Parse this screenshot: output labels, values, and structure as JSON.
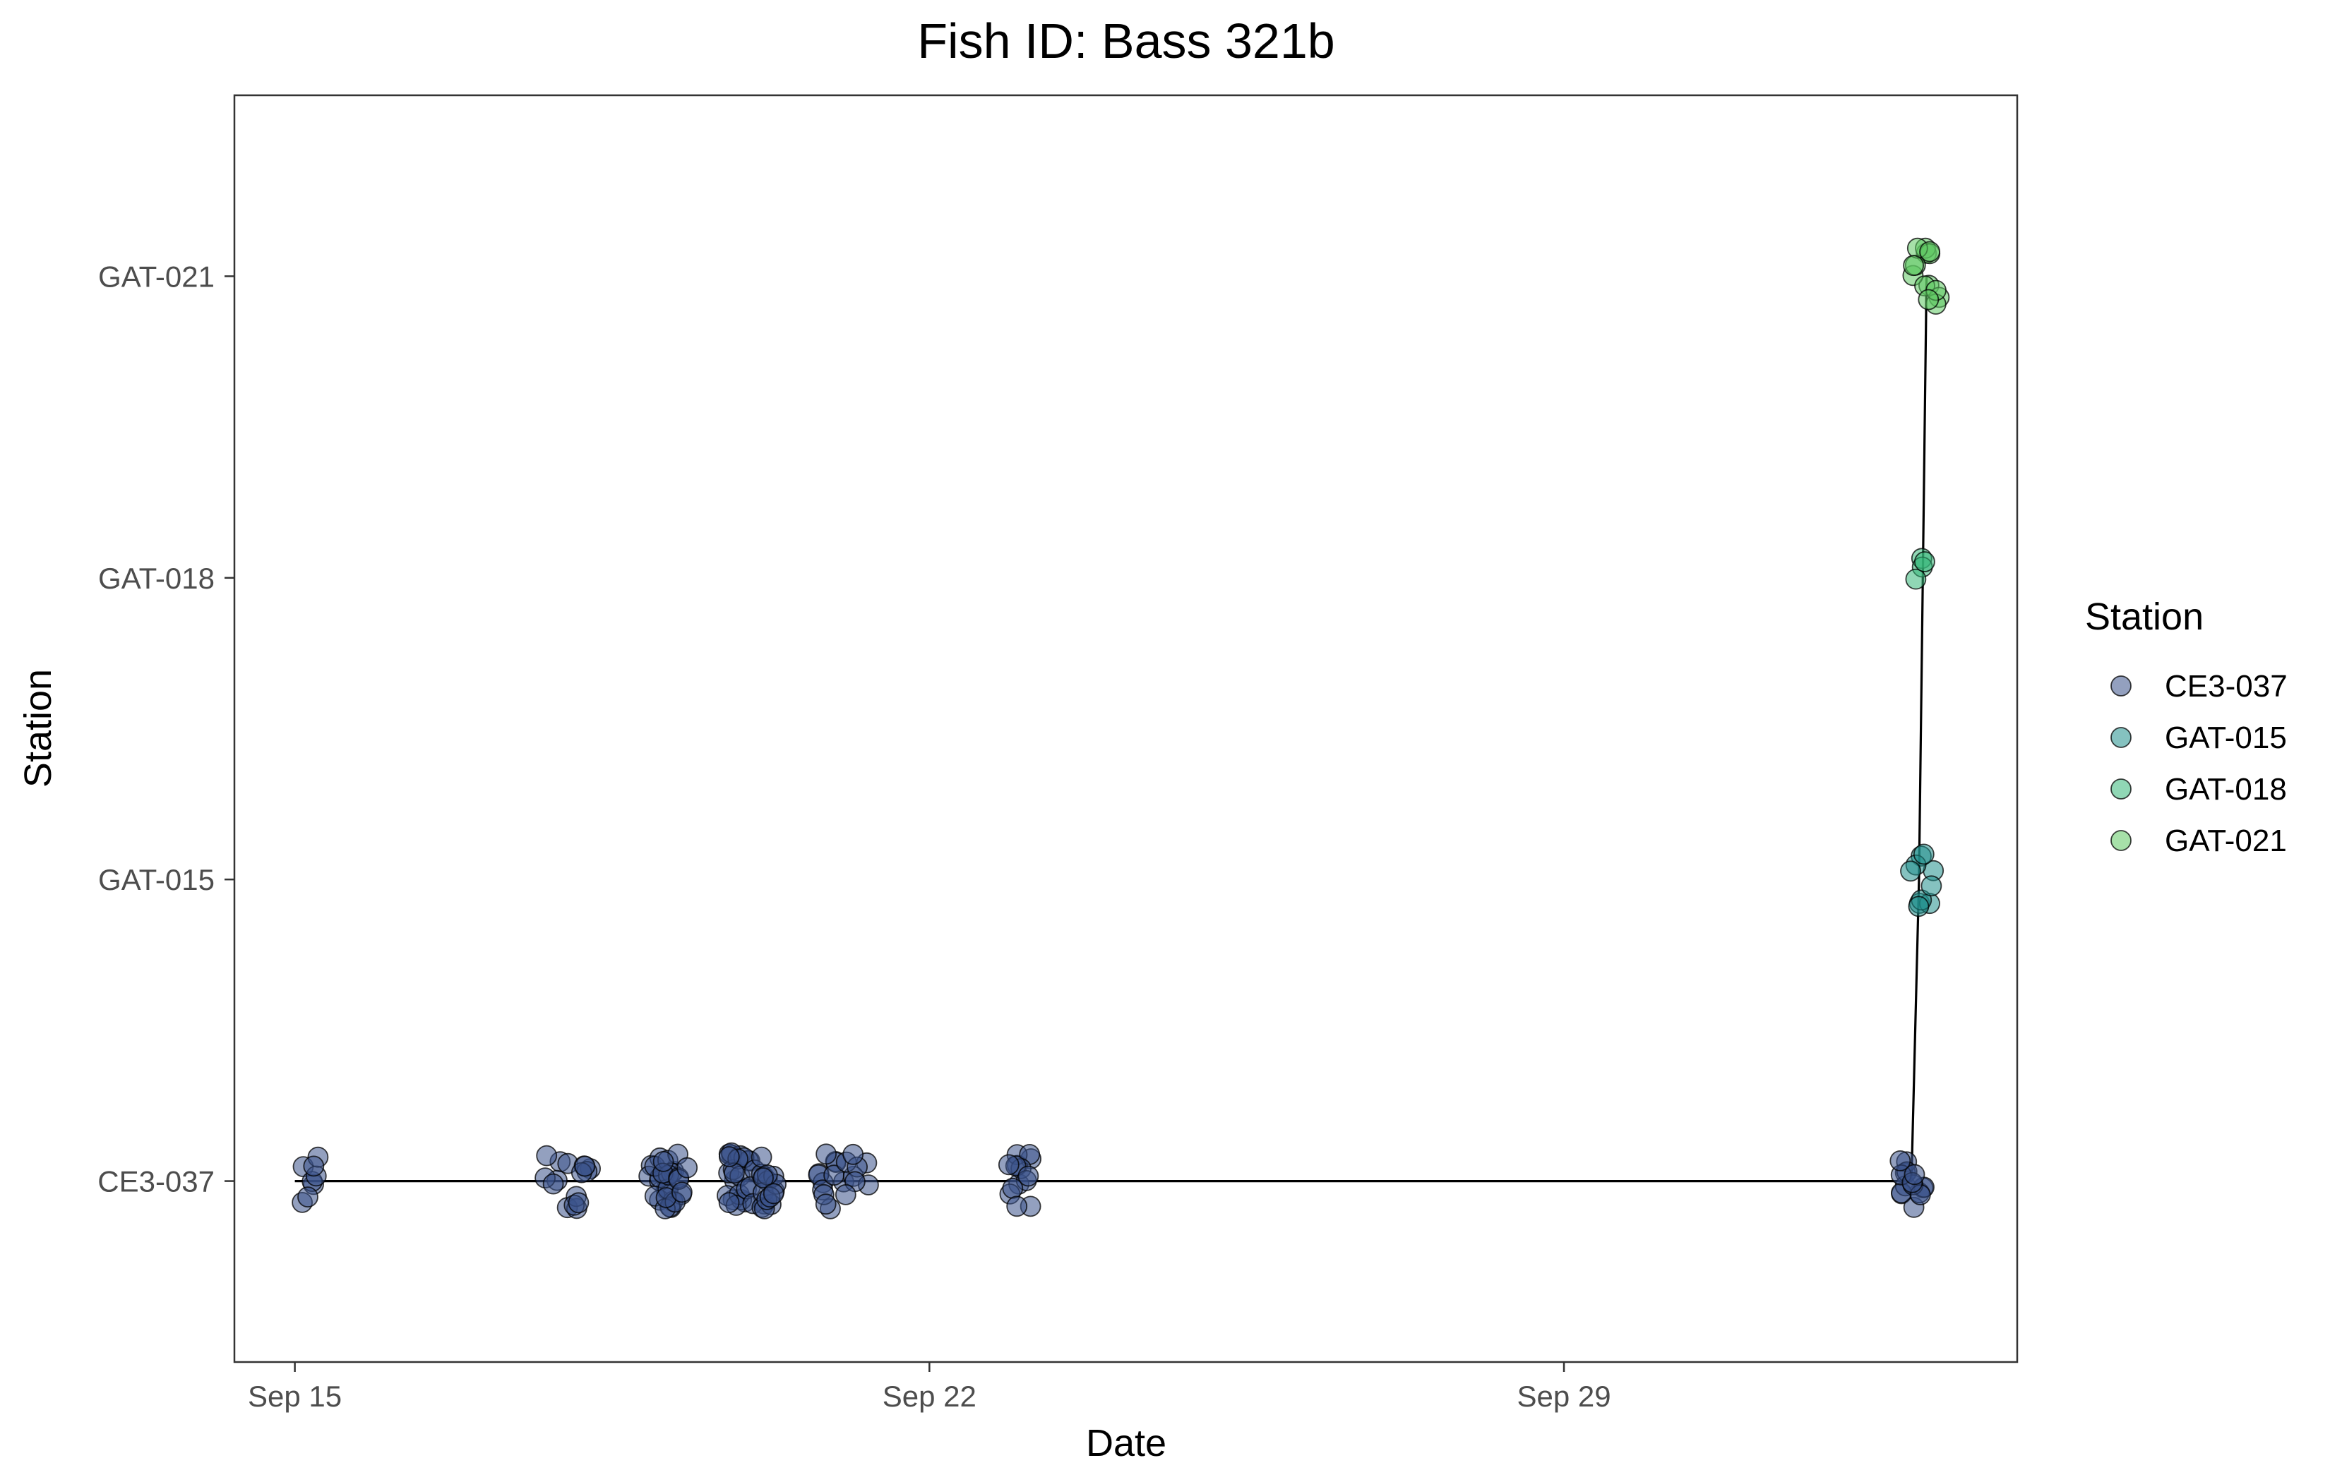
{
  "chart_data": {
    "type": "scatter",
    "title": "Fish ID: Bass 321b",
    "xlabel": "Date",
    "ylabel": "Station",
    "x_range": [
      "2023-09-14T08:00",
      "2023-10-04T00:00"
    ],
    "x_ticks": [
      {
        "date": "2023-09-15T00:00",
        "label": "Sep 15"
      },
      {
        "date": "2023-09-22T00:00",
        "label": "Sep 22"
      },
      {
        "date": "2023-09-29T00:00",
        "label": "Sep 29"
      }
    ],
    "categories": [
      "CE3-037",
      "GAT-015",
      "GAT-018",
      "GAT-021"
    ],
    "legend": {
      "title": "Station",
      "position": "right"
    },
    "grid": false,
    "colors": {
      "CE3-037": "#3b528b",
      "GAT-015": "#21908c",
      "GAT-018": "#35b779",
      "GAT-021": "#5ec962"
    },
    "series": [
      {
        "name": "CE3-037",
        "clusters": [
          {
            "date": "2023-09-15T05:00",
            "count": 8
          },
          {
            "date": "2023-09-17T21:00",
            "count": 7
          },
          {
            "date": "2023-09-18T05:00",
            "count": 9
          },
          {
            "date": "2023-09-19T01:00",
            "count": 16
          },
          {
            "date": "2023-09-19T05:00",
            "count": 14
          },
          {
            "date": "2023-09-19T22:00",
            "count": 22
          },
          {
            "date": "2023-09-20T04:00",
            "count": 20
          },
          {
            "date": "2023-09-20T22:00",
            "count": 12
          },
          {
            "date": "2023-09-21T05:00",
            "count": 8
          },
          {
            "date": "2023-09-23T00:00",
            "count": 14
          },
          {
            "date": "2023-10-02T20:00",
            "count": 16
          }
        ]
      },
      {
        "name": "GAT-015",
        "clusters": [
          {
            "date": "2023-10-02T23:00",
            "count": 10
          }
        ]
      },
      {
        "name": "GAT-018",
        "clusters": [
          {
            "date": "2023-10-02T23:00",
            "count": 4
          }
        ]
      },
      {
        "name": "GAT-021",
        "clusters": [
          {
            "date": "2023-10-03T00:00",
            "count": 14
          }
        ]
      }
    ],
    "path": [
      {
        "date": "2023-09-15T00:00",
        "station": "CE3-037"
      },
      {
        "date": "2023-10-02T20:00",
        "station": "CE3-037"
      },
      {
        "date": "2023-10-02T22:00",
        "station": "GAT-015"
      },
      {
        "date": "2023-10-02T23:00",
        "station": "GAT-018"
      },
      {
        "date": "2023-10-03T00:00",
        "station": "GAT-021"
      }
    ]
  }
}
